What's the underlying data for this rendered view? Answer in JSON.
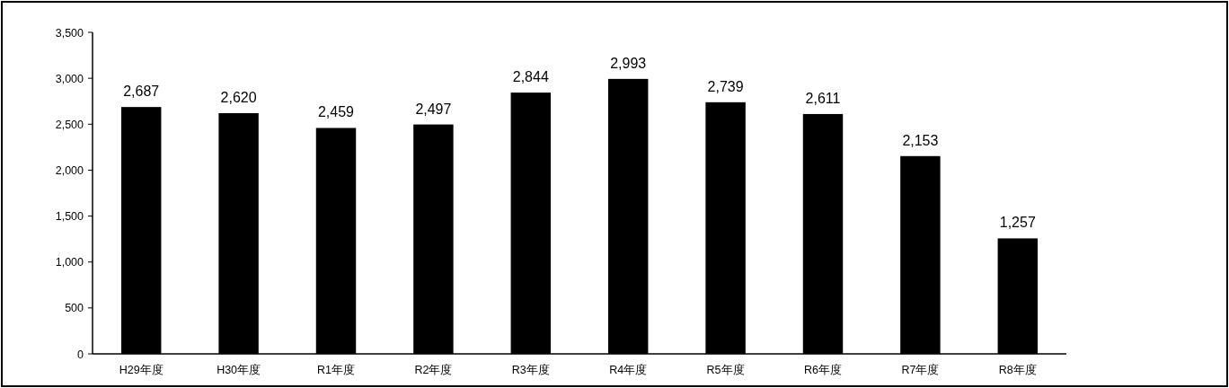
{
  "chart_data": {
    "type": "bar",
    "categories": [
      "H29年度",
      "H30年度",
      "R1年度",
      "R2年度",
      "R3年度",
      "R4年度",
      "R5年度",
      "R6年度",
      "R7年度",
      "R8年度"
    ],
    "values": [
      2687,
      2620,
      2459,
      2497,
      2844,
      2993,
      2739,
      2611,
      2153,
      1257
    ],
    "color": "#000000",
    "ylim": [
      0,
      3500
    ],
    "yticks": [
      {
        "value": 0,
        "label": "0"
      },
      {
        "value": 500,
        "label": "500"
      },
      {
        "value": 1000,
        "label": "1,000"
      },
      {
        "value": 1500,
        "label": "1,500"
      },
      {
        "value": 2000,
        "label": "2,000"
      },
      {
        "value": 2500,
        "label": "2,500"
      },
      {
        "value": 3000,
        "label": "3,000"
      },
      {
        "value": 3500,
        "label": "3,500"
      }
    ],
    "value_labels": [
      "2,687",
      "2,620",
      "2,459",
      "2,497",
      "2,844",
      "2,993",
      "2,739",
      "2,611",
      "2,153",
      "1,257"
    ],
    "grid": false
  }
}
